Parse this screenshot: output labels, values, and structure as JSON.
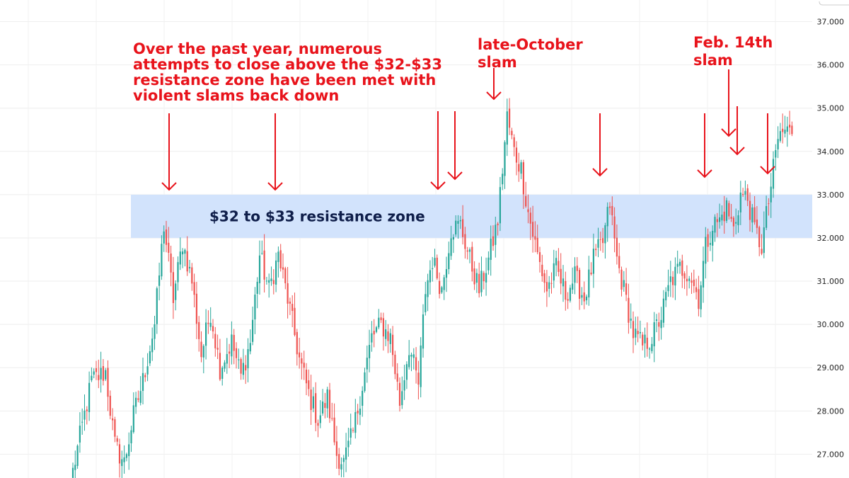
{
  "chart_data": {
    "type": "candlestick",
    "ylim": [
      26.45,
      37.5
    ],
    "y_ticks": [
      "27.000",
      "28.000",
      "29.000",
      "30.000",
      "31.000",
      "32.000",
      "33.000",
      "34.000",
      "35.000",
      "36.000",
      "37.000"
    ],
    "grid": true,
    "colors": {
      "up": "#26a69a",
      "down": "#ef5350",
      "annotation": "#e8131b",
      "zone": "#d2e3fc",
      "zone_text": "#0f1e4a",
      "grid": "#eeeeee"
    },
    "resistance_zone": {
      "low": 32,
      "high": 33,
      "label": "$32 to $33 resistance zone"
    },
    "annotations": [
      {
        "lines": [
          "Over the past year, numerous",
          "attempts to close above the $32-$33",
          "resistance zone have been met with",
          "violent slams back down"
        ]
      },
      {
        "lines": [
          "late-October",
          "slam"
        ]
      },
      {
        "lines": [
          "Feb. 14th",
          "slam"
        ]
      }
    ],
    "anchors": [
      [
        0,
        26.6
      ],
      [
        8,
        28.7
      ],
      [
        14,
        28.9
      ],
      [
        18,
        27.2
      ],
      [
        22,
        26.8
      ],
      [
        26,
        27.9
      ],
      [
        30,
        28.7
      ],
      [
        35,
        30.0
      ],
      [
        39,
        32.3
      ],
      [
        43,
        30.6
      ],
      [
        47,
        31.9
      ],
      [
        51,
        31.0
      ],
      [
        55,
        29.3
      ],
      [
        59,
        30.3
      ],
      [
        63,
        29.0
      ],
      [
        68,
        29.6
      ],
      [
        72,
        28.8
      ],
      [
        76,
        29.6
      ],
      [
        80,
        31.6
      ],
      [
        84,
        30.8
      ],
      [
        88,
        31.6
      ],
      [
        92,
        30.6
      ],
      [
        97,
        29.2
      ],
      [
        101,
        28.4
      ],
      [
        105,
        27.8
      ],
      [
        109,
        28.3
      ],
      [
        113,
        27.0
      ],
      [
        116,
        26.8
      ],
      [
        120,
        27.5
      ],
      [
        124,
        28.6
      ],
      [
        128,
        29.7
      ],
      [
        132,
        30.0
      ],
      [
        136,
        29.7
      ],
      [
        140,
        28.2
      ],
      [
        144,
        29.5
      ],
      [
        148,
        28.6
      ],
      [
        151,
        30.8
      ],
      [
        154,
        31.5
      ],
      [
        158,
        30.8
      ],
      [
        162,
        32.2
      ],
      [
        166,
        32.3
      ],
      [
        170,
        31.5
      ],
      [
        174,
        30.8
      ],
      [
        178,
        31.5
      ],
      [
        182,
        32.4
      ],
      [
        186,
        34.8
      ],
      [
        189,
        34.0
      ],
      [
        192,
        33.6
      ],
      [
        195,
        32.6
      ],
      [
        199,
        31.6
      ],
      [
        203,
        30.8
      ],
      [
        207,
        31.3
      ],
      [
        211,
        30.7
      ],
      [
        215,
        31.1
      ],
      [
        219,
        30.6
      ],
      [
        223,
        31.5
      ],
      [
        227,
        31.9
      ],
      [
        230,
        32.8
      ],
      [
        233,
        31.5
      ],
      [
        236,
        30.8
      ],
      [
        240,
        29.8
      ],
      [
        244,
        29.5
      ],
      [
        248,
        29.7
      ],
      [
        252,
        30.2
      ],
      [
        256,
        31.0
      ],
      [
        260,
        31.3
      ],
      [
        264,
        31.2
      ],
      [
        268,
        30.6
      ],
      [
        271,
        31.8
      ],
      [
        274,
        32.3
      ],
      [
        277,
        32.4
      ],
      [
        280,
        32.7
      ],
      [
        283,
        32.2
      ],
      [
        286,
        33.0
      ],
      [
        289,
        32.9
      ],
      [
        292,
        32.2
      ],
      [
        295,
        31.8
      ],
      [
        299,
        33.2
      ],
      [
        302,
        34.3
      ],
      [
        305,
        34.5
      ],
      [
        308,
        34.4
      ]
    ]
  }
}
